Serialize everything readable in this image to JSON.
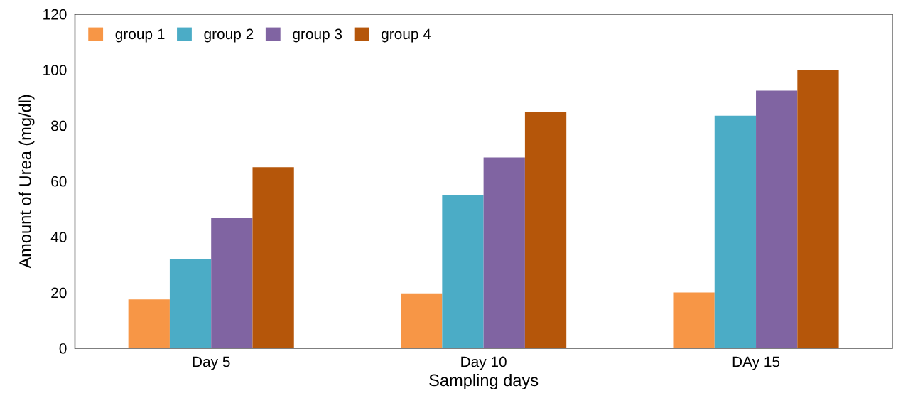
{
  "chart_data": {
    "type": "bar",
    "xlabel": "Sampling days",
    "ylabel": "Amount of Urea (mg/dl)",
    "categories": [
      "Day 5",
      "Day 10",
      "DAy 15"
    ],
    "series": [
      {
        "name": "group 1",
        "color": "#f79646",
        "values": [
          17.5,
          19.7,
          20
        ]
      },
      {
        "name": "group 2",
        "color": "#4bacc6",
        "values": [
          32,
          55,
          83.5
        ]
      },
      {
        "name": "group 3",
        "color": "#8064a2",
        "values": [
          46.7,
          68.5,
          92.5
        ]
      },
      {
        "name": "group 4",
        "color": "#b5560a",
        "values": [
          65,
          85,
          100
        ]
      }
    ],
    "ylim": [
      0,
      120
    ],
    "yticks": [
      0,
      20,
      40,
      60,
      80,
      100,
      120
    ],
    "grid": false,
    "legend": "top left"
  }
}
